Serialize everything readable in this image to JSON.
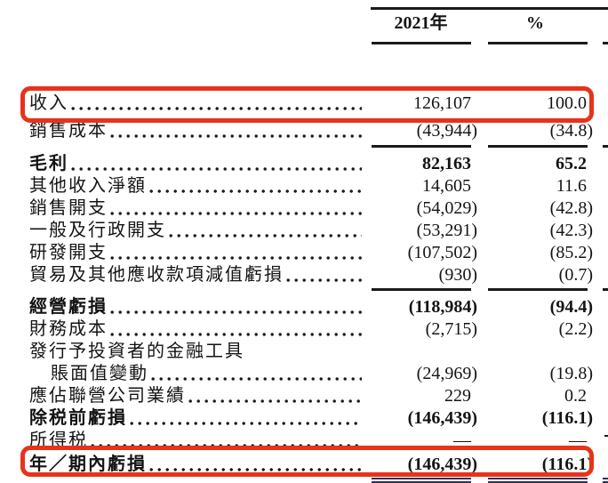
{
  "document": {
    "type": "income-statement-extract",
    "language": "zh-Hant"
  },
  "colors": {
    "highlight": "#e7331b",
    "rule": "#1a1a1a",
    "double_rule": "#30305a",
    "text": "#141414"
  },
  "table": {
    "header": {
      "year_label": "2021年",
      "percent_label": "%"
    },
    "rows": [
      {
        "label": "收入",
        "value": "126,107",
        "pct": "100.0",
        "bold": false,
        "highlighted": true
      },
      {
        "label": "銷售成本",
        "value": "(43,944)",
        "pct": "(34.8)",
        "bold": false,
        "rule_after": true
      },
      {
        "label": "毛利",
        "value": "82,163",
        "pct": "65.2",
        "bold": true
      },
      {
        "label": "其他收入淨額",
        "value": "14,605",
        "pct": "11.6",
        "bold": false
      },
      {
        "label": "銷售開支",
        "value": "(54,029)",
        "pct": "(42.8)",
        "bold": false
      },
      {
        "label": "一般及行政開支",
        "value": "(53,291)",
        "pct": "(42.3)",
        "bold": false
      },
      {
        "label": "研發開支",
        "value": "(107,502)",
        "pct": "(85.2)",
        "bold": false
      },
      {
        "label": "貿易及其他應收款項減值虧損",
        "value": "(930)",
        "pct": "(0.7)",
        "bold": false,
        "rule_after": true
      },
      {
        "label": "經營虧損",
        "value": "(118,984)",
        "pct": "(94.4)",
        "bold": true
      },
      {
        "label": "財務成本",
        "value": "(2,715)",
        "pct": "(2.2)",
        "bold": false
      },
      {
        "label": "發行予投資者的金融工具",
        "value": "",
        "pct": "",
        "bold": false,
        "no_leader": true
      },
      {
        "label": "賬面值變動",
        "value": "(24,969)",
        "pct": "(19.8)",
        "bold": false,
        "indent": true
      },
      {
        "label": "應佔聯營公司業績",
        "value": "229",
        "pct": "0.2",
        "bold": false
      },
      {
        "label": "除税前虧損",
        "value": "(146,439)",
        "pct": "(116.1)",
        "bold": true
      },
      {
        "label": "所得税",
        "value": "—",
        "pct": "—",
        "bold": false
      },
      {
        "label": "年／期內虧損",
        "value": "(146,439)",
        "pct": "(116.1)",
        "bold": true,
        "highlighted": true,
        "double_rule_after": true
      }
    ]
  }
}
